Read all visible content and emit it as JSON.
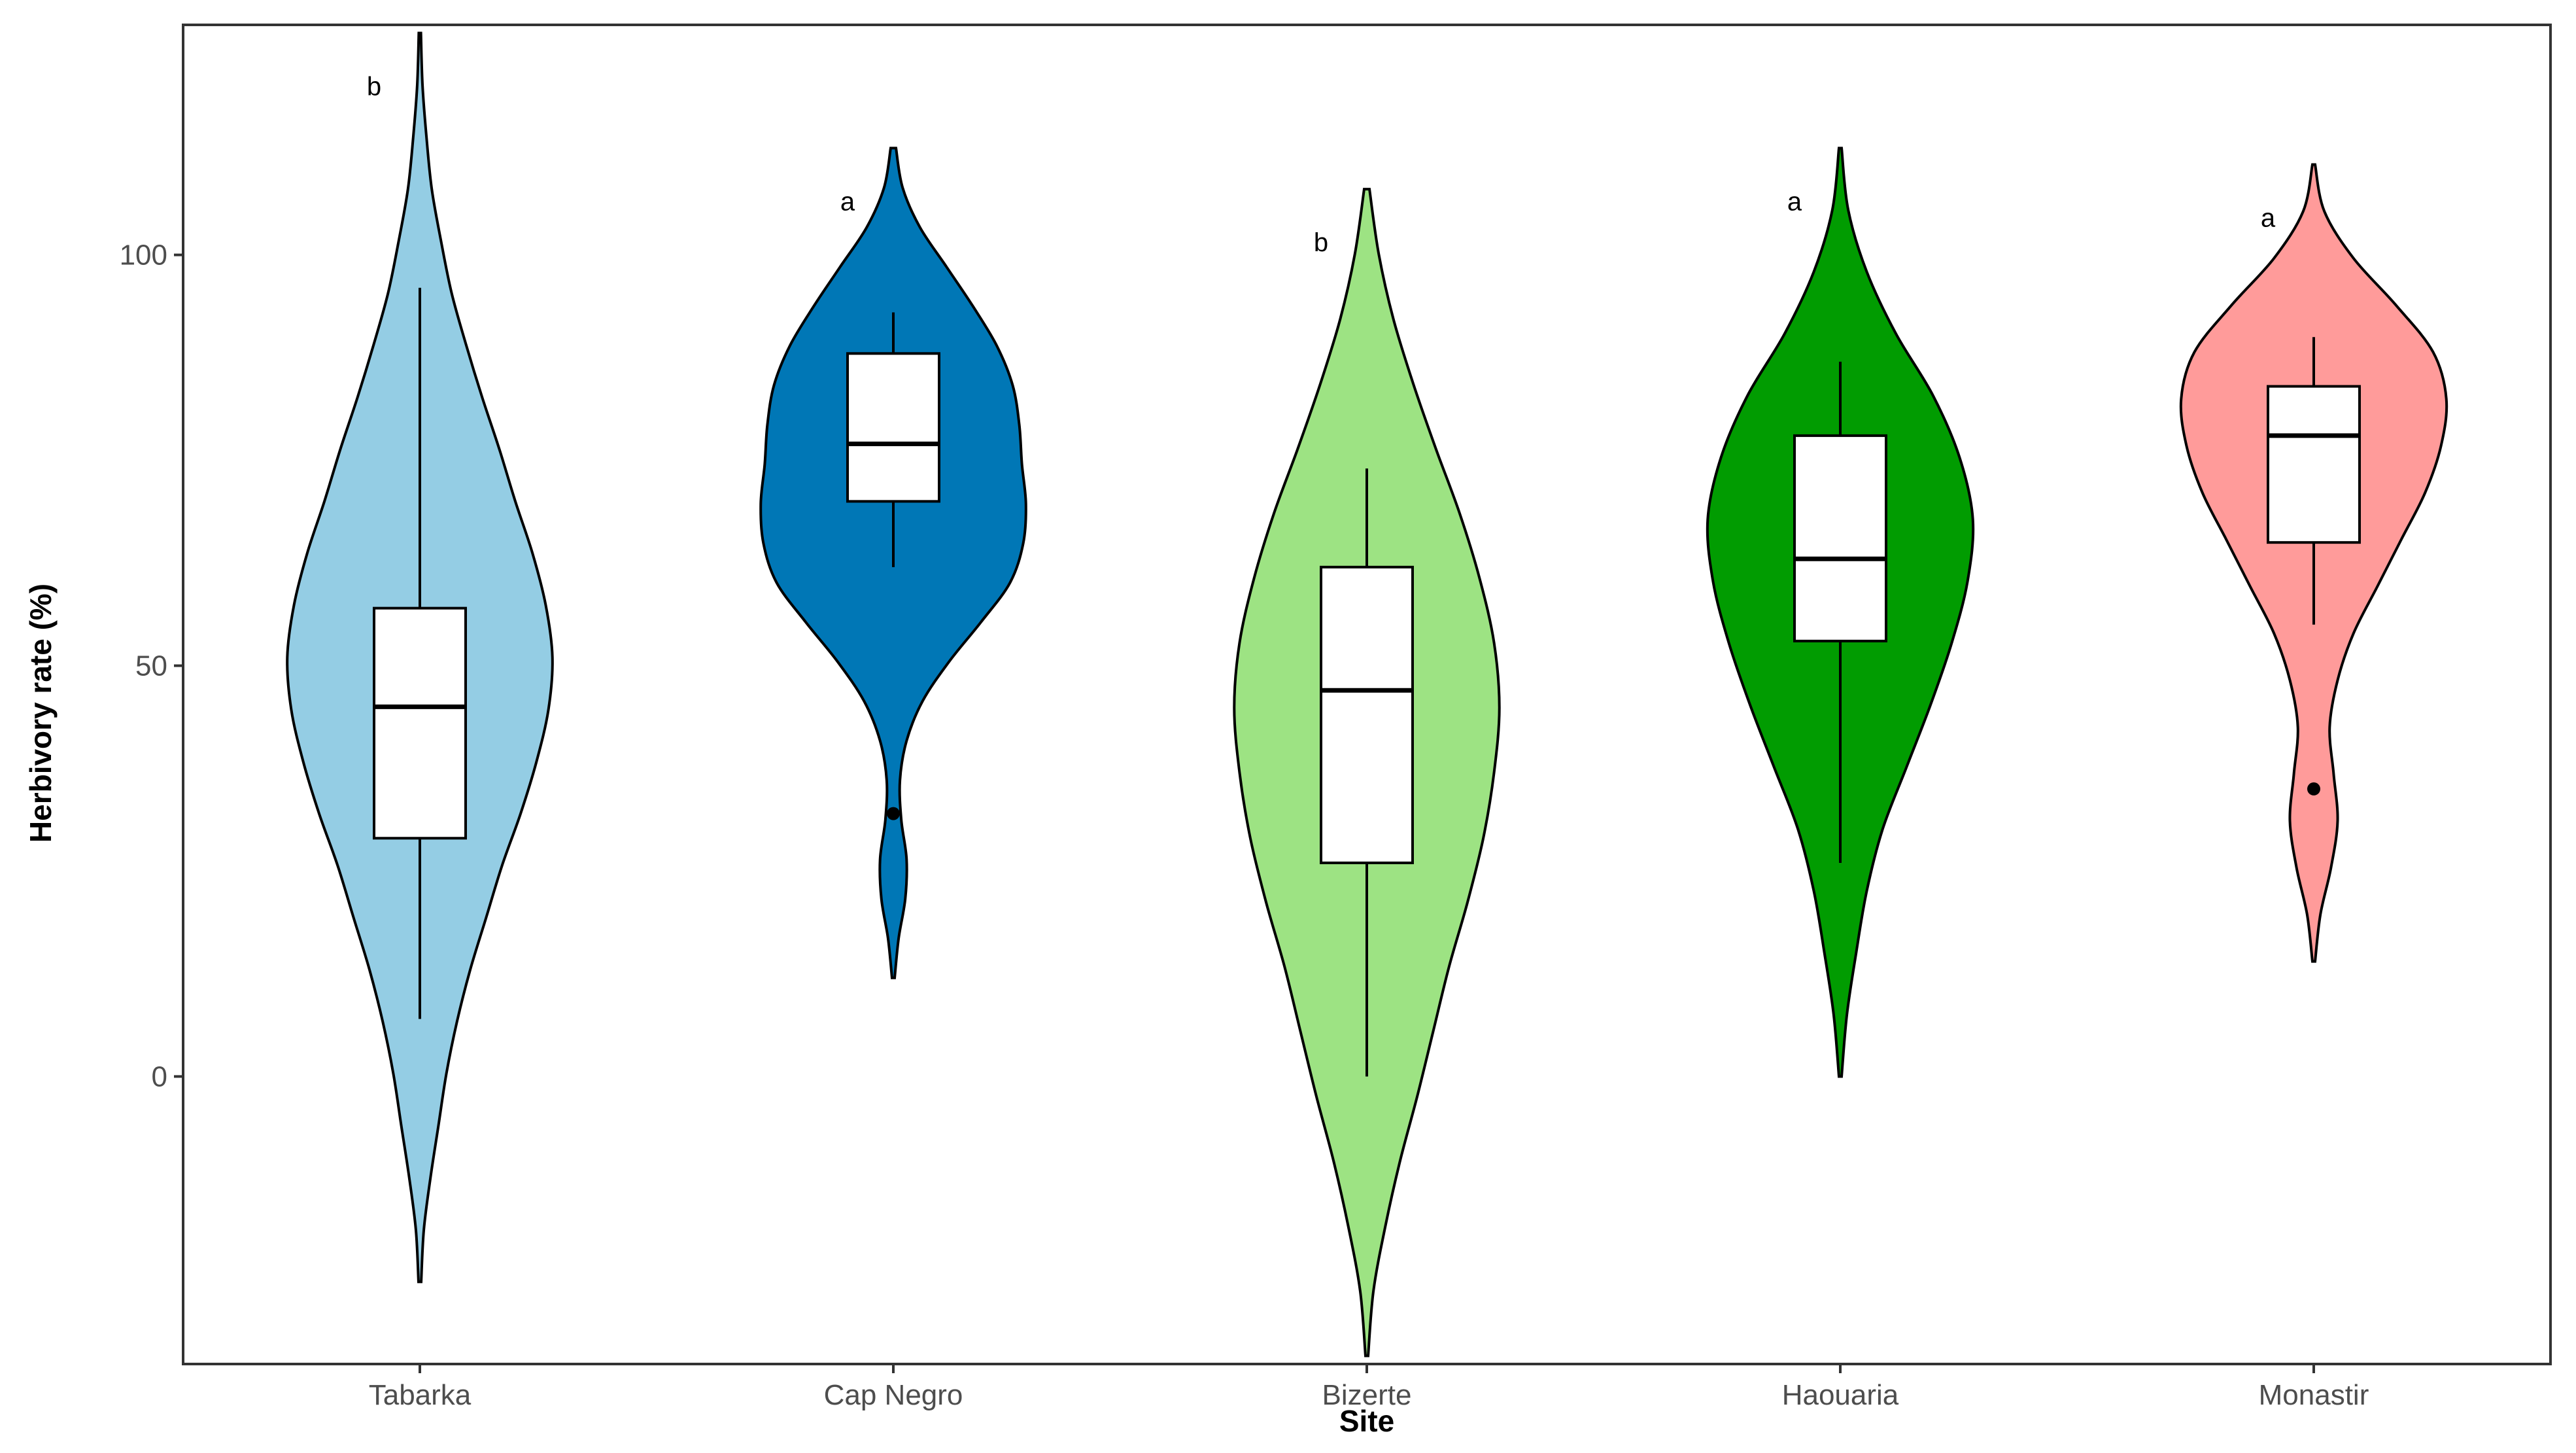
{
  "chart_data": {
    "type": "violin",
    "xlabel": "Site",
    "ylabel": "Herbivory rate (%)",
    "ylim": [
      -35,
      128
    ],
    "yticks": [
      0,
      50,
      100
    ],
    "grid": false,
    "legend": "none",
    "groups": [
      {
        "name": "Tabarka",
        "color": "#94cde4",
        "sig": "b",
        "box": {
          "min": 7,
          "q1": 29,
          "median": 45,
          "q3": 57,
          "max": 96
        },
        "outliers": [],
        "violin_range": [
          -25,
          127
        ],
        "density_widths": [
          0.01,
          0.03,
          0.08,
          0.14,
          0.2,
          0.28,
          0.38,
          0.5,
          0.62,
          0.76,
          0.88,
          0.97,
          1.0,
          0.95,
          0.85,
          0.72,
          0.6,
          0.47,
          0.35,
          0.24,
          0.16,
          0.09,
          0.05,
          0.02,
          0.008
        ]
      },
      {
        "name": "Cap Negro",
        "color": "#0077b6",
        "sig": "a",
        "box": {
          "min": 62,
          "q1": 70,
          "median": 77,
          "q3": 88,
          "max": 93
        },
        "outliers": [
          32
        ],
        "violin_range": [
          12,
          113
        ],
        "density_widths": [
          0.01,
          0.04,
          0.09,
          0.1,
          0.06,
          0.05,
          0.1,
          0.22,
          0.42,
          0.66,
          0.88,
          0.98,
          1.0,
          0.97,
          0.95,
          0.9,
          0.78,
          0.6,
          0.4,
          0.2,
          0.07,
          0.02
        ]
      },
      {
        "name": "Bizerte",
        "color": "#9de383",
        "sig": "b",
        "box": {
          "min": 0,
          "q1": 26,
          "median": 47,
          "q3": 62,
          "max": 74
        },
        "outliers": [],
        "violin_range": [
          -34,
          108
        ],
        "density_widths": [
          0.01,
          0.05,
          0.14,
          0.25,
          0.38,
          0.5,
          0.62,
          0.76,
          0.88,
          0.96,
          1.0,
          0.96,
          0.85,
          0.7,
          0.52,
          0.35,
          0.2,
          0.09,
          0.02
        ]
      },
      {
        "name": "Haouaria",
        "color": "#019c01",
        "sig": "a",
        "box": {
          "min": 26,
          "q1": 53,
          "median": 63,
          "q3": 78,
          "max": 87
        },
        "outliers": [],
        "violin_range": [
          0,
          113
        ],
        "density_widths": [
          0.01,
          0.05,
          0.12,
          0.2,
          0.32,
          0.5,
          0.68,
          0.84,
          0.96,
          1.0,
          0.9,
          0.7,
          0.42,
          0.2,
          0.06,
          0.01
        ]
      },
      {
        "name": "Monastir",
        "color": "#ff9b9a",
        "sig": "a",
        "box": {
          "min": 55,
          "q1": 65,
          "median": 78,
          "q3": 84,
          "max": 90
        },
        "outliers": [
          35
        ],
        "violin_range": [
          14,
          111
        ],
        "density_widths": [
          0.01,
          0.05,
          0.13,
          0.18,
          0.15,
          0.12,
          0.18,
          0.3,
          0.48,
          0.66,
          0.84,
          0.96,
          1.0,
          0.9,
          0.62,
          0.3,
          0.08,
          0.01
        ]
      }
    ]
  }
}
